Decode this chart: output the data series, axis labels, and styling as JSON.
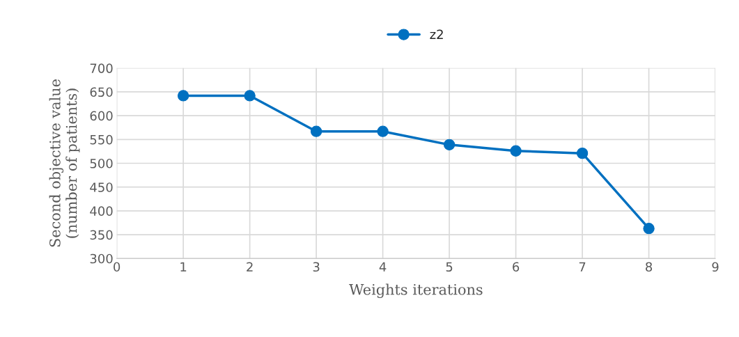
{
  "chart_data": {
    "type": "line",
    "xlabel": "Weights iterations",
    "ylabel": "Second objective value\n(number of patients)",
    "x": [
      1,
      2,
      3,
      4,
      5,
      6,
      7,
      8
    ],
    "series": [
      {
        "name": "z2",
        "color": "#0070c0",
        "values": [
          642,
          642,
          567,
          567,
          539,
          526,
          521,
          363
        ]
      }
    ],
    "xlim": [
      0,
      9
    ],
    "xticks": [
      0,
      1,
      2,
      3,
      4,
      5,
      6,
      7,
      8,
      9
    ],
    "ylim": [
      300,
      700
    ],
    "yticks": [
      300,
      350,
      400,
      450,
      500,
      550,
      600,
      650,
      700
    ],
    "grid": true,
    "legend": "top",
    "marker": "circle",
    "line_style": "solid"
  }
}
